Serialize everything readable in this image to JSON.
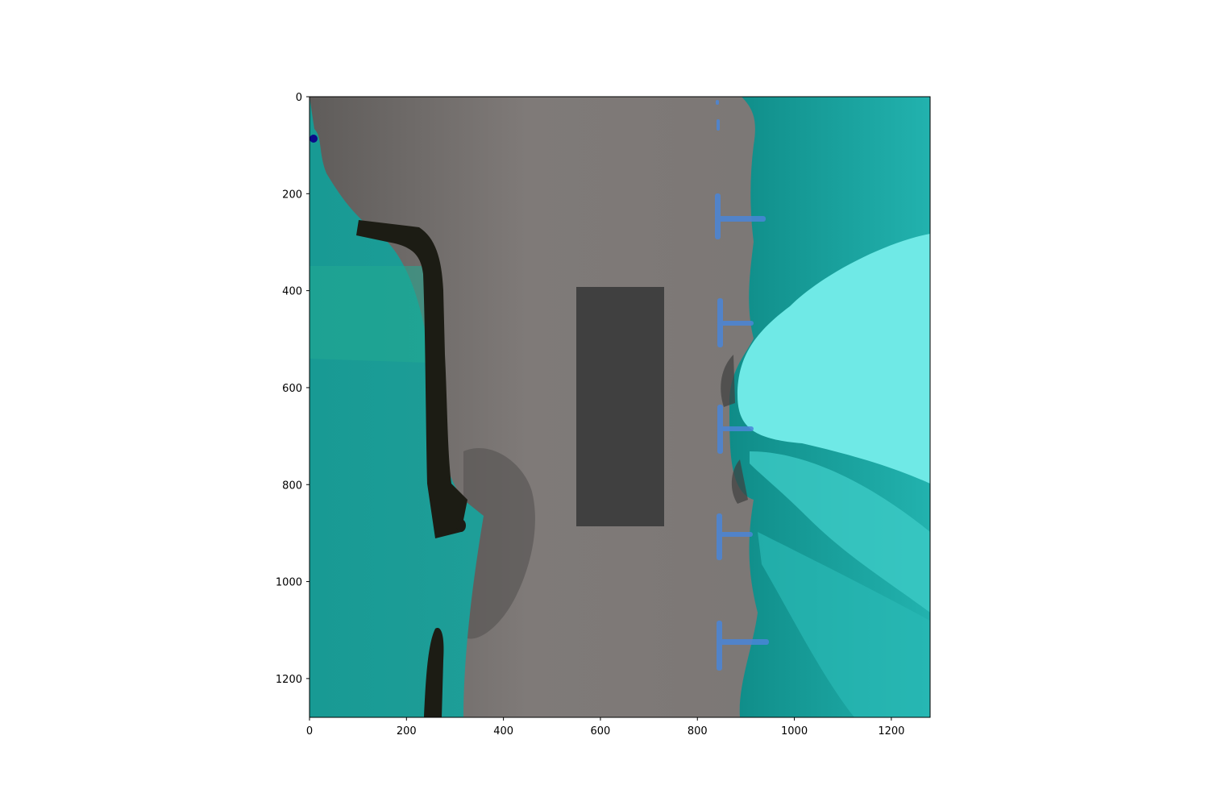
{
  "figure": {
    "type": "image-with-axes",
    "description_free": true,
    "x_axis": {
      "ticks": [
        0,
        200,
        400,
        600,
        800,
        1000,
        1200
      ],
      "range": [
        0,
        1280
      ]
    },
    "y_axis": {
      "ticks": [
        0,
        200,
        400,
        600,
        800,
        1000,
        1200
      ],
      "range": [
        0,
        1280
      ],
      "inverted": true
    },
    "tick_labels": {
      "x": [
        "0",
        "200",
        "400",
        "600",
        "800",
        "1000",
        "1200"
      ],
      "y": [
        "0",
        "200",
        "400",
        "600",
        "800",
        "1000",
        "1200"
      ]
    },
    "colors": {
      "background": "#ffffff",
      "road": "#7d7878",
      "vehicle_box": "#404040",
      "left_overlay": "#1a9a95",
      "right_overlay": "#18a8a4",
      "right_car_highlight": "#6fe9e6",
      "curb_dark": "#1c1c14",
      "parking_lines": "#4a86d8",
      "marker_dot": "#0a0a8a"
    }
  }
}
